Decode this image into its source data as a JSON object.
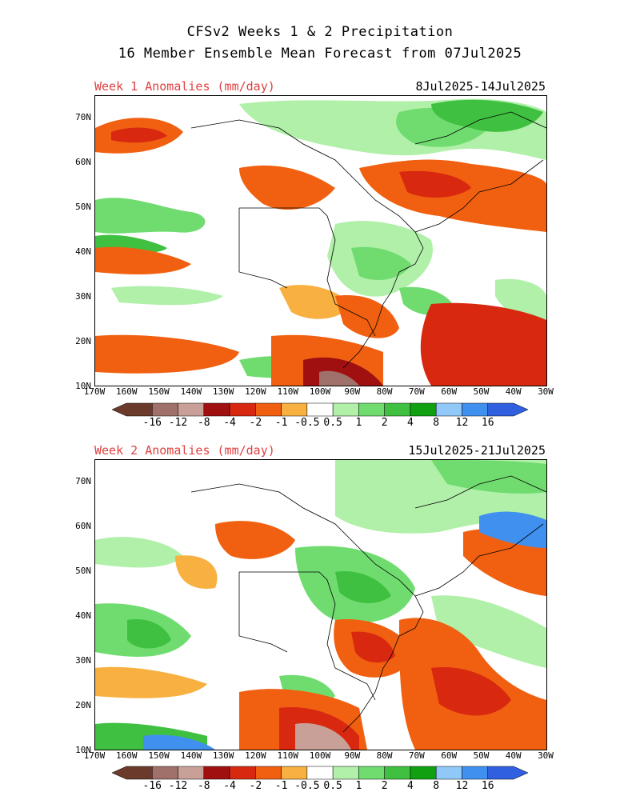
{
  "title": {
    "line1": "CFSv2 Weeks 1 & 2 Precipitation",
    "line2": "16 Member Ensemble Mean Forecast from 07Jul2025"
  },
  "panels": [
    {
      "label": "Week 1 Anomalies (mm/day)",
      "dates": "8Jul2025-14Jul2025"
    },
    {
      "label": "Week 2 Anomalies (mm/day)",
      "dates": "15Jul2025-21Jul2025"
    }
  ],
  "axes": {
    "lat_labels": [
      "70N",
      "60N",
      "50N",
      "40N",
      "30N",
      "20N",
      "10N"
    ],
    "lon_labels": [
      "170W",
      "160W",
      "150W",
      "140W",
      "130W",
      "120W",
      "110W",
      "100W",
      "90W",
      "80W",
      "70W",
      "60W",
      "50W",
      "40W",
      "30W"
    ]
  },
  "colorbar": {
    "labels": [
      "-16",
      "-12",
      "-8",
      "-4",
      "-2",
      "-1",
      "-0.5",
      "0.5",
      "1",
      "2",
      "4",
      "8",
      "12",
      "16"
    ],
    "colors": [
      "#6b3a2a",
      "#a0706a",
      "#c8a098",
      "#a01010",
      "#d82810",
      "#f06010",
      "#f8b040",
      "#ffffff",
      "#b0f0a8",
      "#70dc70",
      "#40c040",
      "#10a010",
      "#90c8f8",
      "#4090f0",
      "#3060e0"
    ]
  }
}
